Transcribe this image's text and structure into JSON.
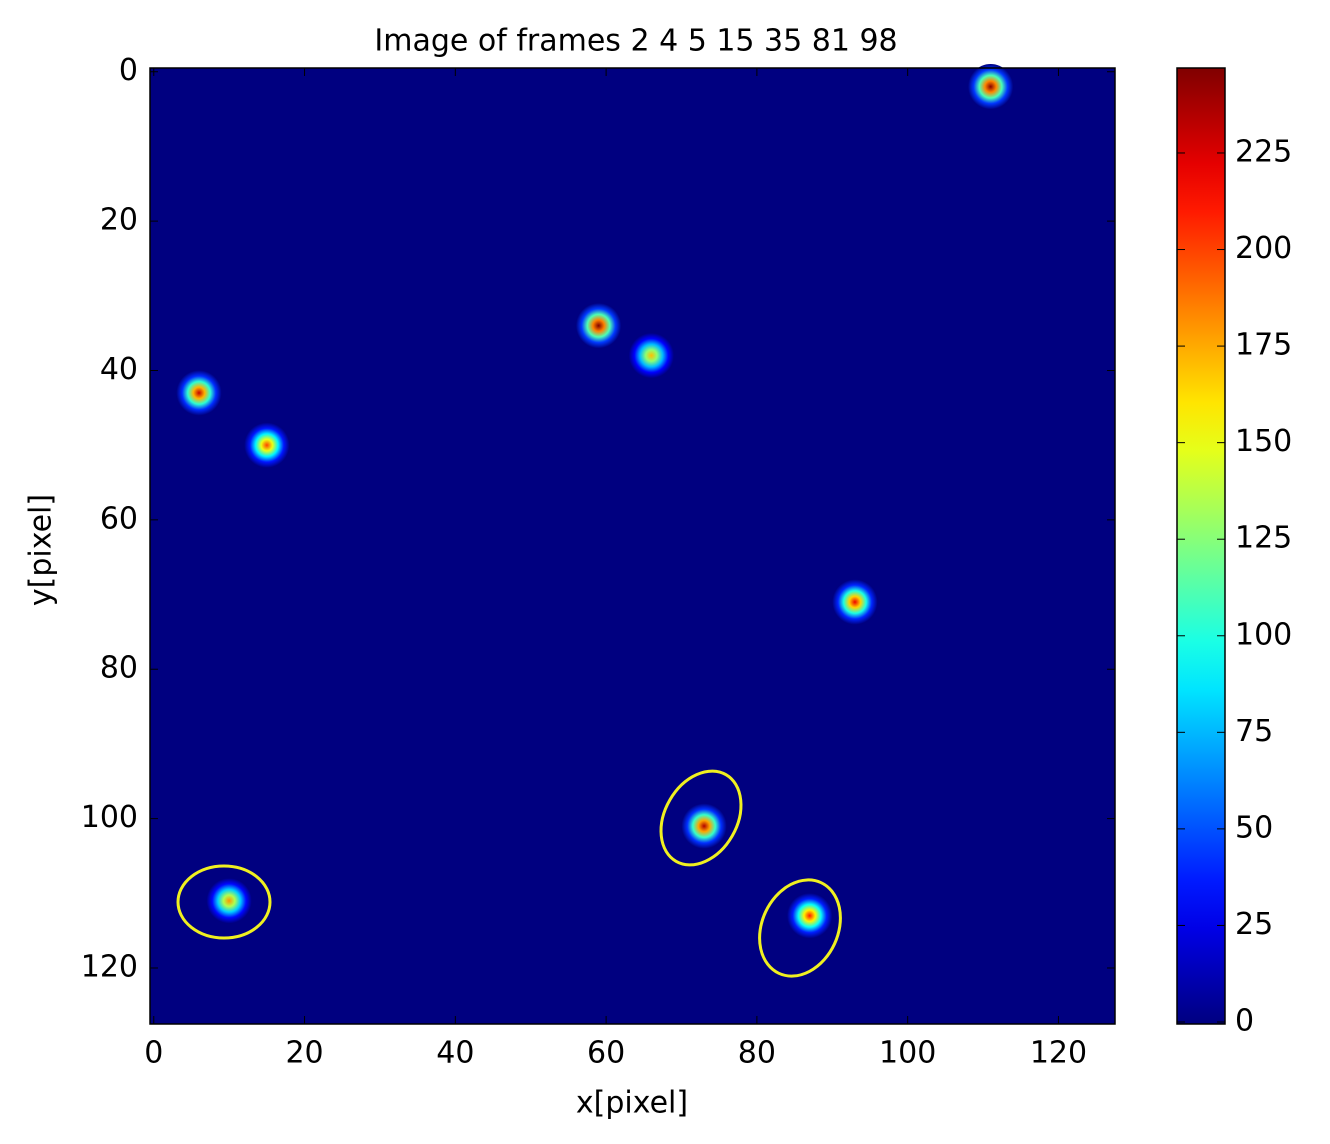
{
  "chart_data": {
    "type": "heatmap",
    "title": "Image of frames 2 4 5 15 35 81 98",
    "xlabel": "x[pixel]",
    "ylabel": "y[pixel]",
    "colormap": "jet",
    "x": [
      111,
      59,
      66,
      6,
      15,
      93,
      73,
      10,
      87
    ],
    "y": [
      2,
      34,
      38,
      43,
      50,
      71,
      101,
      111,
      113
    ],
    "values": [
      245,
      247,
      170,
      230,
      200,
      220,
      235,
      180,
      210
    ],
    "xlim": [
      -0.5,
      127.5
    ],
    "ylim": [
      127.5,
      -0.5
    ],
    "xticks": [
      0,
      20,
      40,
      60,
      80,
      100,
      120
    ],
    "yticks": [
      0,
      20,
      40,
      60,
      80,
      100,
      120
    ],
    "clim": [
      0,
      247
    ],
    "cticks": [
      0,
      25,
      50,
      75,
      100,
      125,
      150,
      175,
      200,
      225
    ]
  }
}
